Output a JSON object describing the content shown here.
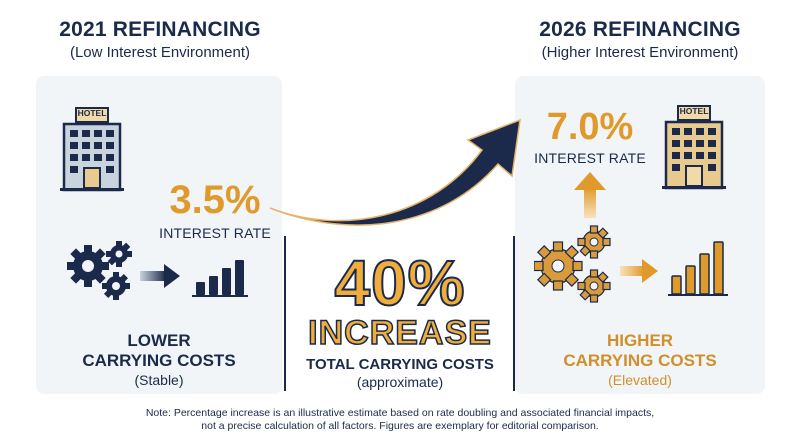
{
  "left": {
    "title": "2021 REFINANCING",
    "subtitle": "(Low Interest Environment)",
    "hotel_label": "HOTEL",
    "rate": "3.5%",
    "rate_label": "INTEREST RATE",
    "cost_line1": "LOWER",
    "cost_line2": "CARRYING COSTS",
    "cost_sub": "(Stable)"
  },
  "right": {
    "title": "2026 REFINANCING",
    "subtitle": "(Higher Interest Environment)",
    "hotel_label": "HOTEL",
    "rate": "7.0%",
    "rate_label": "INTEREST RATE",
    "cost_line1": "HIGHER",
    "cost_line2": "CARRYING COSTS",
    "cost_sub": "(Elevated)"
  },
  "center": {
    "percent": "40%",
    "increase": "INCREASE",
    "total_label": "TOTAL CARRYING COSTS",
    "approx": "(approximate)"
  },
  "note": {
    "line1": "Note: Percentage increase is an illustrative estimate based on rate doubling and associated financial impacts,",
    "line2": "not a precise calculation of all factors. Figures are exemplary for editorial comparison."
  },
  "colors": {
    "navy": "#1b2a4a",
    "gold": "#e09a2c",
    "panel": "#f1f5f8"
  },
  "icons": [
    "hotel-icon",
    "gears-icon",
    "arrow-right-icon",
    "bar-chart-icon",
    "arrow-up-icon",
    "curved-arrow-icon"
  ]
}
